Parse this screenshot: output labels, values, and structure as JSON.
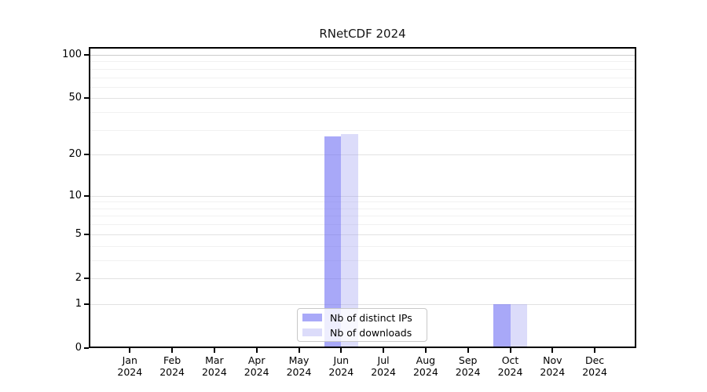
{
  "chart_data": {
    "type": "bar",
    "title": "RNetCDF 2024",
    "x_months": [
      "Jan",
      "Feb",
      "Mar",
      "Apr",
      "May",
      "Jun",
      "Jul",
      "Aug",
      "Sep",
      "Oct",
      "Nov",
      "Dec"
    ],
    "year": "2024",
    "categories": [
      "Jan 2024",
      "Feb 2024",
      "Mar 2024",
      "Apr 2024",
      "May 2024",
      "Jun 2024",
      "Jul 2024",
      "Aug 2024",
      "Sep 2024",
      "Oct 2024",
      "Nov 2024",
      "Dec 2024"
    ],
    "series": [
      {
        "name": "Nb of distinct IPs",
        "color": "#6e6ef3",
        "alpha": 0.6,
        "values": [
          0,
          0,
          0,
          0,
          0,
          27,
          0,
          0,
          0,
          1,
          0,
          0
        ]
      },
      {
        "name": "Nb of downloads",
        "color": "#9b9bf0",
        "alpha": 0.35,
        "values": [
          0,
          0,
          0,
          0,
          0,
          28,
          0,
          0,
          0,
          1,
          0,
          0
        ]
      }
    ],
    "y_axis": {
      "scale": "log1p",
      "major_ticks": [
        0,
        1,
        2,
        5,
        10,
        20,
        50,
        100
      ],
      "minor_gridlines": [
        3,
        4,
        6,
        7,
        8,
        9,
        30,
        40,
        60,
        70,
        80,
        90
      ],
      "ylim": [
        0,
        100
      ]
    },
    "grid": "horizontal",
    "legend_position": "inside-bottom-center",
    "axis_color": "#000000",
    "background_color": "#ffffff"
  },
  "legend": {
    "items": [
      {
        "label": "Nb of distinct IPs",
        "swatch_color": "#a9a9f8"
      },
      {
        "label": "Nb of downloads",
        "swatch_color": "#dcdcfa"
      }
    ]
  }
}
